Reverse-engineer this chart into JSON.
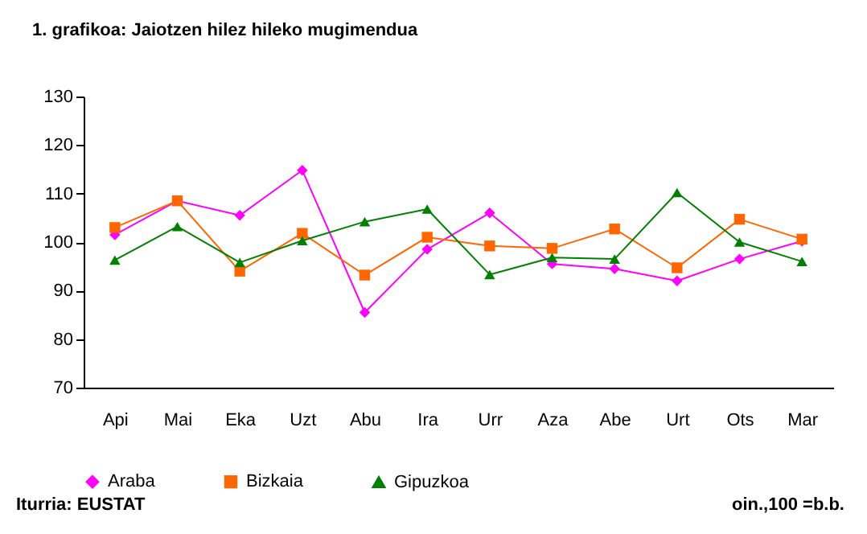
{
  "chart_data": {
    "type": "line",
    "title": "1. grafikoa: Jaiotzen hilez hileko mugimendua",
    "categories": [
      "Api",
      "Mai",
      "Eka",
      "Uzt",
      "Abu",
      "Ira",
      "Urr",
      "Aza",
      "Abe",
      "Urt",
      "Ots",
      "Mar"
    ],
    "series": [
      {
        "name": "Araba",
        "color": "#ff00ff",
        "marker": "diamond",
        "values": [
          101.5,
          108.5,
          105.5,
          114.8,
          85.5,
          98.5,
          106,
          95.5,
          94.5,
          92,
          96.5,
          100.2
        ]
      },
      {
        "name": "Bizkaia",
        "color": "#ff6600",
        "marker": "square",
        "values": [
          103,
          108.5,
          94,
          101.8,
          93.2,
          101,
          99.2,
          98.7,
          102.7,
          94.7,
          104.7,
          100.6
        ]
      },
      {
        "name": "Gipuzkoa",
        "color": "#008000",
        "marker": "triangle",
        "values": [
          96.3,
          103.2,
          95.8,
          100.3,
          104.2,
          106.8,
          93.3,
          96.8,
          96.5,
          110.2,
          100,
          96
        ]
      }
    ],
    "ylim": [
      70,
      130
    ],
    "yticks": [
      70,
      80,
      90,
      100,
      110,
      120,
      130
    ],
    "grid": false,
    "legend": "bottom",
    "line_style": "solid",
    "annotations": [
      "Iturria: EUSTAT",
      "oin.,100 =b.b."
    ]
  }
}
